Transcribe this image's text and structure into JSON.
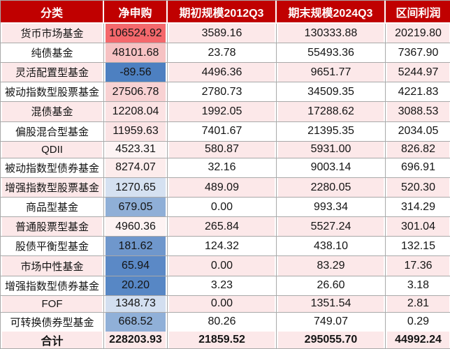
{
  "colors": {
    "header_bg": "#c00000",
    "header_text": "#ffffff",
    "zebra_pink": "#fce8e9",
    "zebra_white": "#ffffff",
    "gridline": "#a9a9a9",
    "scale_max_red": "#f4686c",
    "scale_min_blue": "#4d80c1"
  },
  "table": {
    "columns": [
      {
        "label": "分类"
      },
      {
        "label": "净申购"
      },
      {
        "label": "期初规模2012Q3"
      },
      {
        "label": "期末规模2024Q3"
      },
      {
        "label": "区间利润"
      }
    ],
    "rows": [
      {
        "category": "货币市场基金",
        "net": "106524.92",
        "start": "3589.16",
        "end": "130333.88",
        "profit": "20219.80",
        "net_bg": "#f4686c",
        "zebra": "pink"
      },
      {
        "category": "纯债基金",
        "net": "48101.68",
        "start": "23.78",
        "end": "55493.36",
        "profit": "7367.90",
        "net_bg": "#f6c2c3",
        "zebra": "white"
      },
      {
        "category": "灵活配置型基金",
        "net": "-89.56",
        "start": "4496.36",
        "end": "9651.77",
        "profit": "5244.97",
        "net_bg": "#4d80c1",
        "zebra": "pink"
      },
      {
        "category": "被动指数型股票基金",
        "net": "27506.78",
        "start": "2780.73",
        "end": "34509.35",
        "profit": "4221.83",
        "net_bg": "#f8d2d3",
        "zebra": "white"
      },
      {
        "category": "混债基金",
        "net": "12208.04",
        "start": "1992.05",
        "end": "17288.62",
        "profit": "3088.53",
        "net_bg": "#fbe3e4",
        "zebra": "pink"
      },
      {
        "category": "偏股混合型基金",
        "net": "11959.63",
        "start": "7401.67",
        "end": "21395.35",
        "profit": "2034.05",
        "net_bg": "#fbe4e5",
        "zebra": "white"
      },
      {
        "category": "QDII",
        "net": "4523.31",
        "start": "580.87",
        "end": "5931.00",
        "profit": "826.82",
        "net_bg": "#fdf4f4",
        "zebra": "pink"
      },
      {
        "category": "被动指数型债券基金",
        "net": "8274.07",
        "start": "32.16",
        "end": "9003.14",
        "profit": "696.91",
        "net_bg": "#fcecec",
        "zebra": "white"
      },
      {
        "category": "增强指数型股票基金",
        "net": "1270.65",
        "start": "489.09",
        "end": "2280.05",
        "profit": "520.30",
        "net_bg": "#d5e1f1",
        "zebra": "pink"
      },
      {
        "category": "商品型基金",
        "net": "679.05",
        "start": "0.00",
        "end": "993.34",
        "profit": "314.29",
        "net_bg": "#8fafd7",
        "zebra": "white"
      },
      {
        "category": "普通股票型基金",
        "net": "4960.36",
        "start": "265.84",
        "end": "5527.24",
        "profit": "301.04",
        "net_bg": "#fdf3f3",
        "zebra": "pink"
      },
      {
        "category": "股债平衡型基金",
        "net": "181.62",
        "start": "124.32",
        "end": "438.10",
        "profit": "132.15",
        "net_bg": "#6f97cc",
        "zebra": "white"
      },
      {
        "category": "市场中性基金",
        "net": "65.94",
        "start": "0.00",
        "end": "83.29",
        "profit": "17.36",
        "net_bg": "#5b89c6",
        "zebra": "pink"
      },
      {
        "category": "增强指数型债券基金",
        "net": "20.20",
        "start": "3.23",
        "end": "26.60",
        "profit": "3.18",
        "net_bg": "#5787c5",
        "zebra": "white"
      },
      {
        "category": "FOF",
        "net": "1348.73",
        "start": "0.00",
        "end": "1351.54",
        "profit": "2.81",
        "net_bg": "#d3dff0",
        "zebra": "pink"
      },
      {
        "category": "可转换债券型基金",
        "net": "668.52",
        "start": "80.26",
        "end": "749.07",
        "profit": "0.29",
        "net_bg": "#90b0d8",
        "zebra": "white"
      }
    ],
    "total": {
      "category": "合计",
      "net": "228203.93",
      "start": "21859.52",
      "end": "295055.70",
      "profit": "44992.24"
    }
  },
  "chart_data": {
    "type": "table",
    "title": "",
    "columns": [
      "分类",
      "净申购",
      "期初规模2012Q3",
      "期末规模2024Q3",
      "区间利润"
    ],
    "rows": [
      [
        "货币市场基金",
        106524.92,
        3589.16,
        130333.88,
        20219.8
      ],
      [
        "纯债基金",
        48101.68,
        23.78,
        55493.36,
        7367.9
      ],
      [
        "灵活配置型基金",
        -89.56,
        4496.36,
        9651.77,
        5244.97
      ],
      [
        "被动指数型股票基金",
        27506.78,
        2780.73,
        34509.35,
        4221.83
      ],
      [
        "混债基金",
        12208.04,
        1992.05,
        17288.62,
        3088.53
      ],
      [
        "偏股混合型基金",
        11959.63,
        7401.67,
        21395.35,
        2034.05
      ],
      [
        "QDII",
        4523.31,
        580.87,
        5931.0,
        826.82
      ],
      [
        "被动指数型债券基金",
        8274.07,
        32.16,
        9003.14,
        696.91
      ],
      [
        "增强指数型股票基金",
        1270.65,
        489.09,
        2280.05,
        520.3
      ],
      [
        "商品型基金",
        679.05,
        0.0,
        993.34,
        314.29
      ],
      [
        "普通股票型基金",
        4960.36,
        265.84,
        5527.24,
        301.04
      ],
      [
        "股债平衡型基金",
        181.62,
        124.32,
        438.1,
        132.15
      ],
      [
        "市场中性基金",
        65.94,
        0.0,
        83.29,
        17.36
      ],
      [
        "增强指数型债券基金",
        20.2,
        3.23,
        26.6,
        3.18
      ],
      [
        "FOF",
        1348.73,
        0.0,
        1351.54,
        2.81
      ],
      [
        "可转换债券型基金",
        668.52,
        80.26,
        749.07,
        0.29
      ]
    ],
    "total_row": [
      "合计",
      228203.93,
      21859.52,
      295055.7,
      44992.24
    ],
    "notes": "净申购 column has red-to-blue color scale conditional formatting; rows alternate pink/white; header dark red"
  }
}
